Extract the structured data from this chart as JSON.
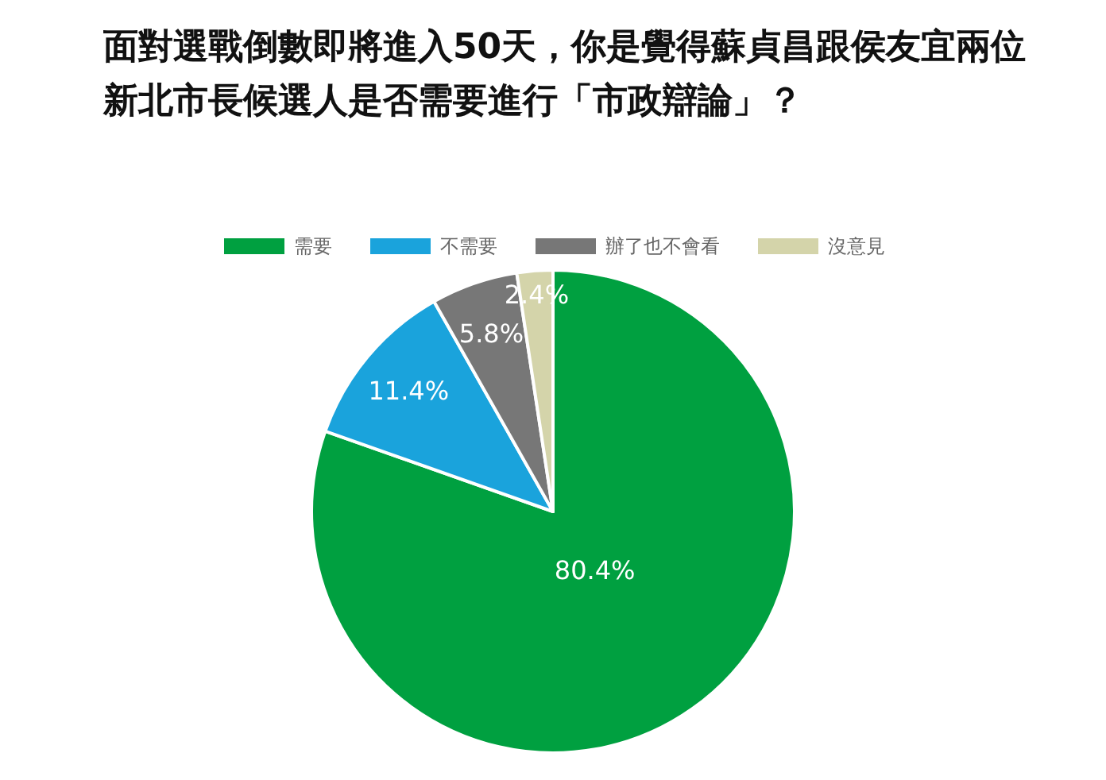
{
  "chart_data": {
    "type": "pie",
    "title": "面對選戰倒數即將進入50天，你是覺得蘇貞昌跟侯友宜兩位新北市長候選人是否需要進行「市政辯論」？",
    "categories": [
      "需要",
      "不需要",
      "辦了也不會看",
      "沒意見"
    ],
    "values": [
      80.4,
      11.4,
      5.8,
      2.4
    ],
    "colors": [
      "#00a040",
      "#1aa3dc",
      "#777777",
      "#d4d4aa"
    ],
    "value_labels": [
      "80.4%",
      "11.4%",
      "5.8%",
      "2.4%"
    ],
    "legend": "top"
  }
}
